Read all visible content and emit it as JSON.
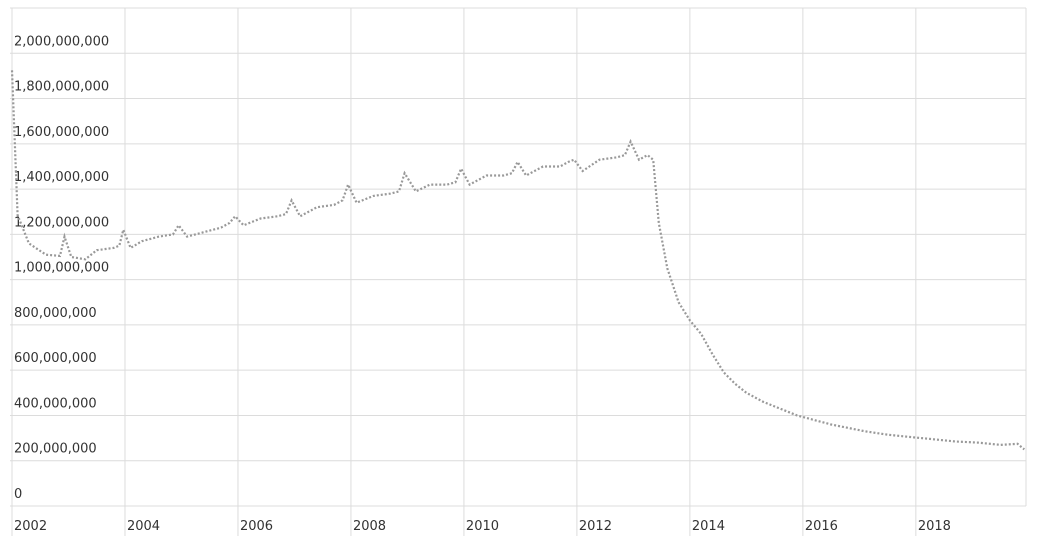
{
  "chart_data": {
    "type": "line",
    "color": "#999999",
    "line_style": "dotted",
    "grid": true,
    "x": [
      2002.0,
      2002.1,
      2002.3,
      2002.6,
      2002.85,
      2002.93,
      2003.05,
      2003.3,
      2003.5,
      2003.8,
      2003.9,
      2003.97,
      2004.1,
      2004.3,
      2004.6,
      2004.85,
      2004.95,
      2005.1,
      2005.4,
      2005.7,
      2005.85,
      2005.95,
      2006.1,
      2006.4,
      2006.7,
      2006.85,
      2006.95,
      2007.1,
      2007.4,
      2007.7,
      2007.85,
      2007.95,
      2008.1,
      2008.4,
      2008.7,
      2008.85,
      2008.95,
      2009.15,
      2009.4,
      2009.7,
      2009.85,
      2009.95,
      2010.1,
      2010.4,
      2010.7,
      2010.85,
      2010.95,
      2011.1,
      2011.4,
      2011.7,
      2011.85,
      2011.95,
      2012.1,
      2012.4,
      2012.7,
      2012.85,
      2012.95,
      2013.1,
      2013.25,
      2013.35,
      2013.45,
      2013.6,
      2013.8,
      2014.0,
      2014.2,
      2014.4,
      2014.6,
      2014.8,
      2015.0,
      2015.3,
      2015.6,
      2015.9,
      2016.2,
      2016.5,
      2016.8,
      2017.1,
      2017.5,
      2017.9,
      2018.3,
      2018.7,
      2019.1,
      2019.5,
      2019.8,
      2019.92
    ],
    "values": [
      1925000000,
      1285000000,
      1160000000,
      1110000000,
      1105000000,
      1190000000,
      1100000000,
      1090000000,
      1130000000,
      1140000000,
      1150000000,
      1220000000,
      1140000000,
      1170000000,
      1190000000,
      1200000000,
      1240000000,
      1190000000,
      1210000000,
      1230000000,
      1250000000,
      1280000000,
      1240000000,
      1270000000,
      1280000000,
      1290000000,
      1350000000,
      1280000000,
      1320000000,
      1330000000,
      1350000000,
      1420000000,
      1340000000,
      1370000000,
      1380000000,
      1390000000,
      1470000000,
      1390000000,
      1420000000,
      1420000000,
      1430000000,
      1490000000,
      1420000000,
      1460000000,
      1460000000,
      1470000000,
      1520000000,
      1460000000,
      1500000000,
      1500000000,
      1520000000,
      1530000000,
      1480000000,
      1530000000,
      1540000000,
      1550000000,
      1610000000,
      1530000000,
      1550000000,
      1530000000,
      1250000000,
      1050000000,
      900000000,
      820000000,
      760000000,
      670000000,
      590000000,
      540000000,
      500000000,
      460000000,
      430000000,
      400000000,
      380000000,
      360000000,
      345000000,
      330000000,
      315000000,
      305000000,
      295000000,
      285000000,
      280000000,
      270000000,
      275000000,
      250000000
    ],
    "xlim": [
      2002,
      2019.95
    ],
    "xticks": [
      2002,
      2004,
      2006,
      2008,
      2010,
      2012,
      2014,
      2016,
      2018
    ],
    "ylim": [
      0,
      2200000000
    ],
    "yticks": [
      0,
      {
        "value": 200000000,
        "label": "200,000,000"
      },
      {
        "value": 400000000,
        "label": "400,000,000"
      },
      {
        "value": 600000000,
        "label": "600,000,000"
      },
      {
        "value": 800000000,
        "label": "800,000,000"
      },
      {
        "value": 1000000000,
        "label": "1,000,000,000"
      },
      {
        "value": 1200000000,
        "label": "1,200,000,000"
      },
      {
        "value": 1400000000,
        "label": "1,400,000,000"
      },
      {
        "value": 1600000000,
        "label": "1,600,000,000"
      },
      {
        "value": 1800000000,
        "label": "1,800,000,000"
      },
      {
        "value": 2000000000,
        "label": "2,000,000,000"
      }
    ]
  }
}
